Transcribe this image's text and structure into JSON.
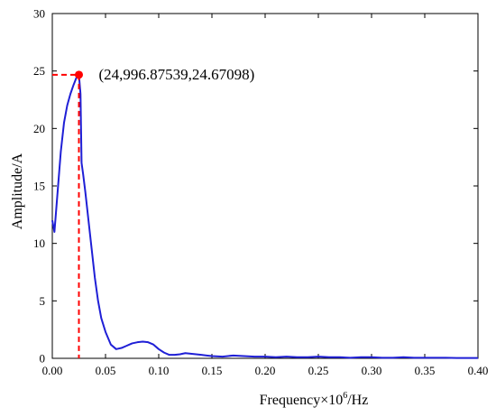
{
  "chart_data": {
    "type": "line",
    "xlabel": "Frequency×10",
    "xlabel_superscript": "6",
    "xlabel_suffix": "/Hz",
    "ylabel": "Amplitude/A",
    "xlim": [
      0,
      0.4
    ],
    "ylim": [
      0,
      30
    ],
    "xticks": [
      0.0,
      0.05,
      0.1,
      0.15,
      0.2,
      0.25,
      0.3,
      0.35,
      0.4
    ],
    "xtick_labels": [
      "0.00",
      "0.05",
      "0.10",
      "0.15",
      "0.20",
      "0.25",
      "0.30",
      "0.35",
      "0.40"
    ],
    "yticks": [
      0,
      5,
      10,
      15,
      20,
      25,
      30
    ],
    "ytick_labels": [
      "0",
      "5",
      "10",
      "15",
      "20",
      "25",
      "30"
    ],
    "grid": false,
    "series": [
      {
        "color": "#1f1fd6",
        "x": [
          0.0,
          0.002,
          0.005,
          0.008,
          0.011,
          0.014,
          0.017,
          0.02,
          0.023,
          0.025,
          0.0265,
          0.0275,
          0.029,
          0.031,
          0.034,
          0.037,
          0.04,
          0.043,
          0.046,
          0.05,
          0.055,
          0.06,
          0.065,
          0.07,
          0.075,
          0.08,
          0.085,
          0.09,
          0.095,
          0.1,
          0.105,
          0.11,
          0.115,
          0.12,
          0.125,
          0.13,
          0.135,
          0.14,
          0.145,
          0.15,
          0.16,
          0.17,
          0.18,
          0.19,
          0.2,
          0.21,
          0.22,
          0.23,
          0.24,
          0.25,
          0.26,
          0.27,
          0.28,
          0.29,
          0.3,
          0.31,
          0.32,
          0.33,
          0.34,
          0.35,
          0.36,
          0.37,
          0.38,
          0.39,
          0.4
        ],
        "y": [
          12.0,
          11.0,
          14.5,
          18.0,
          20.5,
          22.0,
          23.0,
          23.8,
          24.5,
          24.67,
          23.0,
          17.0,
          16.0,
          14.5,
          12.0,
          9.5,
          7.0,
          5.0,
          3.5,
          2.3,
          1.2,
          0.8,
          0.9,
          1.1,
          1.3,
          1.4,
          1.45,
          1.4,
          1.2,
          0.8,
          0.5,
          0.3,
          0.3,
          0.35,
          0.45,
          0.4,
          0.35,
          0.3,
          0.25,
          0.2,
          0.15,
          0.25,
          0.2,
          0.15,
          0.15,
          0.1,
          0.15,
          0.1,
          0.1,
          0.15,
          0.1,
          0.1,
          0.05,
          0.1,
          0.1,
          0.05,
          0.05,
          0.1,
          0.05,
          0.05,
          0.05,
          0.05,
          0.03,
          0.03,
          0.03
        ]
      }
    ],
    "annotation": {
      "x": 0.025,
      "y": 24.67098,
      "label": "(24,996.87539,24.67098)",
      "marker_color": "#ff0000",
      "guide_color": "#ff0000"
    }
  }
}
